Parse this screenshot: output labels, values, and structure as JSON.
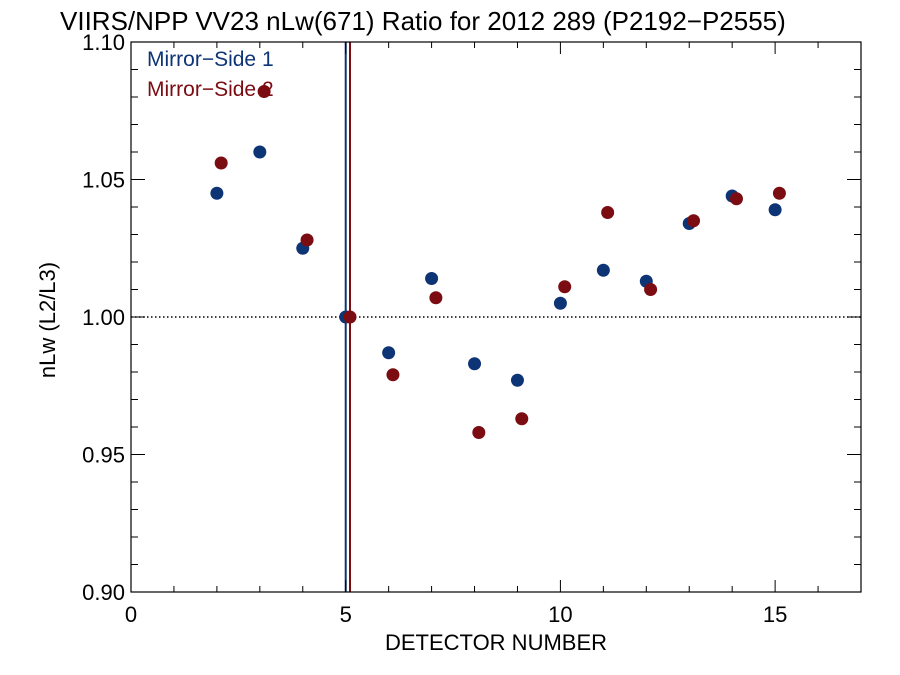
{
  "chart_data": {
    "type": "scatter",
    "title": "VIIRS/NPP VV23 nLw(671) Ratio for 2012 289 (P2192−P2555)",
    "xlabel": "DETECTOR NUMBER",
    "ylabel": "nLw (L2/L3)",
    "xlim": [
      0,
      17
    ],
    "ylim": [
      0.9,
      1.1
    ],
    "x_ticks": [
      0,
      5,
      10,
      15
    ],
    "x_tick_labels": [
      "0",
      "5",
      "10",
      "15"
    ],
    "x_minor_step": 1,
    "y_ticks": [
      0.9,
      0.95,
      1.0,
      1.05,
      1.1
    ],
    "y_tick_labels": [
      "0.90",
      "0.95",
      "1.00",
      "1.05",
      "1.10"
    ],
    "y_minor_step": 0.01,
    "reference_line": {
      "y": 1.0,
      "style": "dotted"
    },
    "legend_position": "top-left",
    "series": [
      {
        "name": "Mirror−Side 1",
        "color": "#0d3475",
        "reference_x": 5,
        "points": [
          {
            "x": 2,
            "y": 1.045
          },
          {
            "x": 3,
            "y": 1.06
          },
          {
            "x": 4,
            "y": 1.025
          },
          {
            "x": 5,
            "y": 1.0
          },
          {
            "x": 6,
            "y": 0.987
          },
          {
            "x": 7,
            "y": 1.014
          },
          {
            "x": 8,
            "y": 0.983
          },
          {
            "x": 9,
            "y": 0.977
          },
          {
            "x": 10,
            "y": 1.005
          },
          {
            "x": 11,
            "y": 1.017
          },
          {
            "x": 12,
            "y": 1.013
          },
          {
            "x": 13,
            "y": 1.034
          },
          {
            "x": 14,
            "y": 1.044
          },
          {
            "x": 15,
            "y": 1.039
          }
        ]
      },
      {
        "name": "Mirror−Side 2",
        "color": "#7a0c12",
        "reference_x": 5.1,
        "points": [
          {
            "x": 2.1,
            "y": 1.056
          },
          {
            "x": 3.1,
            "y": 1.082
          },
          {
            "x": 4.1,
            "y": 1.028
          },
          {
            "x": 5.1,
            "y": 1.0
          },
          {
            "x": 6.1,
            "y": 0.979
          },
          {
            "x": 7.1,
            "y": 1.007
          },
          {
            "x": 8.1,
            "y": 0.958
          },
          {
            "x": 9.1,
            "y": 0.963
          },
          {
            "x": 10.1,
            "y": 1.011
          },
          {
            "x": 11.1,
            "y": 1.038
          },
          {
            "x": 12.1,
            "y": 1.01
          },
          {
            "x": 13.1,
            "y": 1.035
          },
          {
            "x": 14.1,
            "y": 1.043
          },
          {
            "x": 15.1,
            "y": 1.045
          }
        ]
      }
    ]
  }
}
